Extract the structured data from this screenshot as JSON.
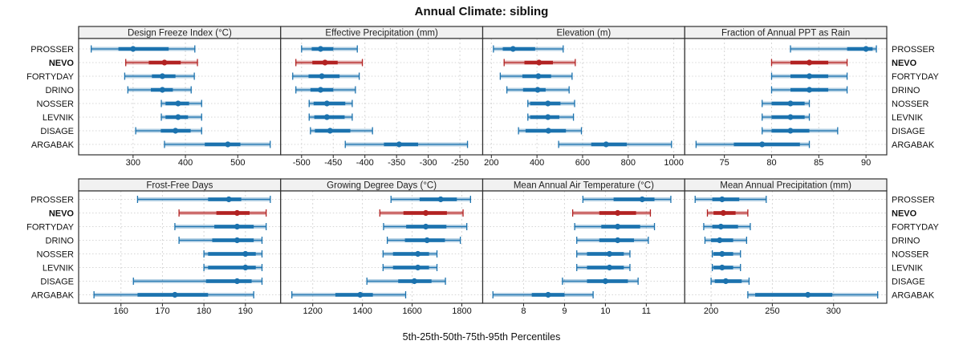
{
  "title": "Annual Climate: sibling",
  "caption": "5th-25th-50th-75th-95th Percentiles",
  "colors": {
    "normal": "#1b72ae",
    "highlight": "#b22222",
    "band_opacity": 0.32,
    "grid": "#d6d6d6",
    "border": "#2e2e2e",
    "header_bg": "#f1f1f1",
    "tick": "#222222"
  },
  "chart_data": {
    "type": "percentile-dotplot",
    "percentile_labels": [
      "5th",
      "25th",
      "50th",
      "75th",
      "95th"
    ],
    "stations": [
      "PROSSER",
      "NEVO",
      "FORTYDAY",
      "DRINO",
      "NOSSER",
      "LEVNIK",
      "DISAGE",
      "ARGABAK"
    ],
    "highlight_index": 1,
    "highlighted_station": "NEVO",
    "legend_note": "station labels repeated on left and right; NEVO shown in red",
    "panels": [
      {
        "title": "Design Freeze Index (°C)",
        "row": 0,
        "col": 0,
        "xlim": [
          196,
          582
        ],
        "ticks": [
          300,
          400,
          500
        ],
        "series": [
          [
            220,
            272,
            300,
            368,
            418
          ],
          [
            286,
            330,
            360,
            391,
            423
          ],
          [
            284,
            336,
            356,
            381,
            417
          ],
          [
            290,
            334,
            356,
            376,
            411
          ],
          [
            354,
            362,
            386,
            407,
            431
          ],
          [
            354,
            362,
            386,
            405,
            431
          ],
          [
            305,
            353,
            381,
            410,
            431
          ],
          [
            360,
            437,
            481,
            505,
            562
          ]
        ]
      },
      {
        "title": "Effective Precipitation (mm)",
        "row": 0,
        "col": 1,
        "xlim": [
          -533,
          -214
        ],
        "ticks": [
          -500,
          -450,
          -400,
          -350,
          -300,
          -250
        ],
        "series": [
          [
            -500,
            -484,
            -470,
            -450,
            -412
          ],
          [
            -509,
            -483,
            -463,
            -443,
            -404
          ],
          [
            -514,
            -489,
            -468,
            -440,
            -409
          ],
          [
            -509,
            -486,
            -470,
            -450,
            -415
          ],
          [
            -488,
            -481,
            -460,
            -431,
            -420
          ],
          [
            -488,
            -480,
            -460,
            -432,
            -420
          ],
          [
            -486,
            -479,
            -455,
            -423,
            -388
          ],
          [
            -431,
            -370,
            -346,
            -316,
            -238
          ]
        ]
      },
      {
        "title": "Elevation (m)",
        "row": 0,
        "col": 2,
        "xlim": [
          162,
          1048
        ],
        "ticks": [
          200,
          400,
          600,
          800,
          1000
        ],
        "series": [
          [
            209,
            250,
            295,
            392,
            515
          ],
          [
            256,
            345,
            409,
            470,
            568
          ],
          [
            239,
            336,
            406,
            462,
            554
          ],
          [
            268,
            339,
            403,
            438,
            541
          ],
          [
            360,
            370,
            448,
            503,
            565
          ],
          [
            360,
            370,
            448,
            498,
            560
          ],
          [
            319,
            350,
            450,
            527,
            595
          ],
          [
            495,
            638,
            703,
            794,
            990
          ]
        ]
      },
      {
        "title": "Fraction of Annual PPT as Rain",
        "row": 0,
        "col": 3,
        "xlim": [
          70.8,
          92.2
        ],
        "ticks": [
          75,
          80,
          85,
          90
        ],
        "series": [
          [
            82,
            88,
            90,
            90.7,
            91.1
          ],
          [
            80,
            82,
            84,
            86,
            88
          ],
          [
            80,
            82,
            84,
            86,
            88
          ],
          [
            80,
            82,
            84,
            86,
            88
          ],
          [
            79,
            80,
            82,
            83.5,
            84
          ],
          [
            79,
            80,
            82,
            83.5,
            84
          ],
          [
            79,
            80,
            82,
            84,
            87
          ],
          [
            72,
            76,
            79,
            83,
            84
          ]
        ]
      },
      {
        "title": "Frost-Free Days",
        "row": 1,
        "col": 0,
        "xlim": [
          149.8,
          198.5
        ],
        "ticks": [
          160,
          170,
          180,
          190
        ],
        "series": [
          [
            164,
            181,
            186,
            189,
            196
          ],
          [
            174,
            183,
            188,
            191,
            195
          ],
          [
            173,
            182.5,
            188,
            192,
            195
          ],
          [
            174,
            182,
            188,
            192,
            194
          ],
          [
            180,
            181,
            190,
            192.5,
            194
          ],
          [
            180,
            181,
            190,
            192.5,
            194
          ],
          [
            163,
            180.5,
            188,
            191.5,
            194
          ],
          [
            153.5,
            164,
            173,
            181,
            192
          ]
        ]
      },
      {
        "title": "Growing Degree Days (°C)",
        "row": 1,
        "col": 1,
        "xlim": [
          1071,
          1884
        ],
        "ticks": [
          1200,
          1400,
          1600,
          1800
        ],
        "series": [
          [
            1515,
            1630,
            1715,
            1780,
            1835
          ],
          [
            1470,
            1565,
            1655,
            1740,
            1805
          ],
          [
            1485,
            1576,
            1655,
            1738,
            1820
          ],
          [
            1500,
            1571,
            1660,
            1732,
            1794
          ],
          [
            1483,
            1523,
            1623,
            1668,
            1700
          ],
          [
            1483,
            1523,
            1623,
            1668,
            1700
          ],
          [
            1418,
            1544,
            1609,
            1678,
            1734
          ],
          [
            1116,
            1291,
            1391,
            1442,
            1574
          ]
        ]
      },
      {
        "title": "Mean Annual Air Temperature (°C)",
        "row": 1,
        "col": 2,
        "xlim": [
          7.0,
          11.94
        ],
        "ticks": [
          8,
          9,
          10,
          11
        ],
        "series": [
          [
            9.45,
            10.2,
            10.9,
            11.2,
            11.6
          ],
          [
            9.2,
            9.85,
            10.3,
            10.75,
            11.1
          ],
          [
            9.25,
            9.9,
            10.3,
            10.85,
            11.2
          ],
          [
            9.3,
            9.85,
            10.3,
            10.7,
            11.05
          ],
          [
            9.3,
            9.55,
            10.1,
            10.45,
            10.6
          ],
          [
            9.3,
            9.55,
            10.1,
            10.45,
            10.6
          ],
          [
            8.95,
            9.55,
            10.0,
            10.55,
            10.8
          ],
          [
            7.25,
            8.2,
            8.6,
            9.0,
            9.7
          ]
        ]
      },
      {
        "title": "Mean Annual Precipitation (mm)",
        "row": 1,
        "col": 3,
        "xlim": [
          178.5,
          343.4
        ],
        "ticks": [
          200,
          250,
          300
        ],
        "series": [
          [
            187,
            201,
            209,
            223,
            245
          ],
          [
            197,
            202,
            210,
            220,
            230
          ],
          [
            194,
            201,
            208,
            222,
            232
          ],
          [
            195,
            200,
            207,
            218,
            229
          ],
          [
            201,
            202,
            209,
            218,
            224
          ],
          [
            201,
            202,
            209,
            218,
            224
          ],
          [
            200,
            203,
            212,
            225,
            231
          ],
          [
            230,
            236,
            279,
            299,
            336
          ]
        ]
      }
    ]
  }
}
